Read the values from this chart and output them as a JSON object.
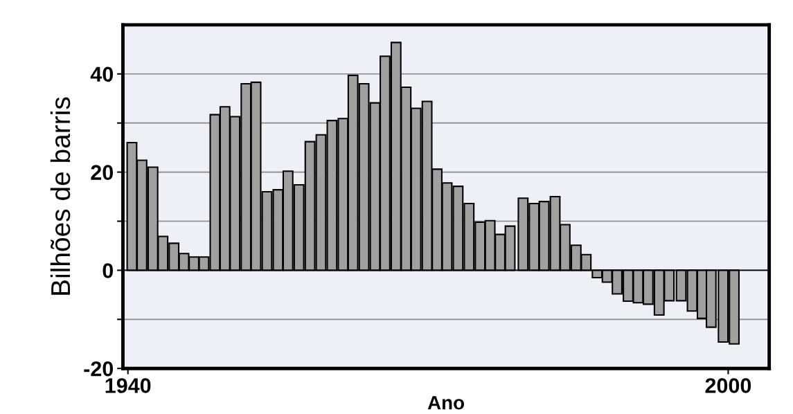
{
  "chart_data": {
    "type": "bar",
    "xlabel": "Ano",
    "ylabel": "Bilhões de barris",
    "x": [
      1940.4,
      1941.4,
      1942.5,
      1943.5,
      1944.6,
      1945.6,
      1946.6,
      1947.6,
      1948.7,
      1949.7,
      1950.7,
      1951.8,
      1952.8,
      1953.9,
      1955.0,
      1956.0,
      1957.1,
      1958.2,
      1959.3,
      1960.4,
      1961.5,
      1962.5,
      1963.6,
      1964.7,
      1965.7,
      1966.8,
      1967.8,
      1968.8,
      1969.9,
      1970.9,
      1971.9,
      1973.0,
      1974.1,
      1975.2,
      1976.2,
      1977.2,
      1978.2,
      1979.5,
      1980.6,
      1981.6,
      1982.7,
      1983.7,
      1984.8,
      1985.8,
      1986.9,
      1987.9,
      1988.9,
      1990.0,
      1991.0,
      1992.0,
      1993.1,
      1994.1,
      1995.3,
      1996.4,
      1997.4,
      1998.3,
      1999.5,
      2000.6
    ],
    "values": [
      26.0,
      22.4,
      21.0,
      6.9,
      5.5,
      3.4,
      2.7,
      2.7,
      31.7,
      33.3,
      31.3,
      38.0,
      38.3,
      16.0,
      16.4,
      20.2,
      17.4,
      26.2,
      27.6,
      30.5,
      30.9,
      39.7,
      38.0,
      34.1,
      43.6,
      46.4,
      37.3,
      33.0,
      34.4,
      20.6,
      17.8,
      17.1,
      13.6,
      9.8,
      10.1,
      7.3,
      9.0,
      14.7,
      13.6,
      14.0,
      15.0,
      9.3,
      5.1,
      3.2,
      -1.5,
      -2.4,
      -4.8,
      -6.3,
      -6.6,
      -6.9,
      -9.1,
      -6.2,
      -6.2,
      -8.3,
      -9.8,
      -11.6,
      -14.6,
      -15.0
    ],
    "color": "#a0a0a0",
    "xlim": [
      1939.5,
      2004.1
    ],
    "xticks": [
      1940,
      2000
    ],
    "ylim": [
      -20,
      50
    ],
    "yticks": [
      -20,
      {
        "value": -10,
        "label": null
      },
      0,
      {
        "value": 10,
        "label": null
      },
      20,
      {
        "value": 30,
        "label": null
      },
      40
    ],
    "grid": "y"
  }
}
